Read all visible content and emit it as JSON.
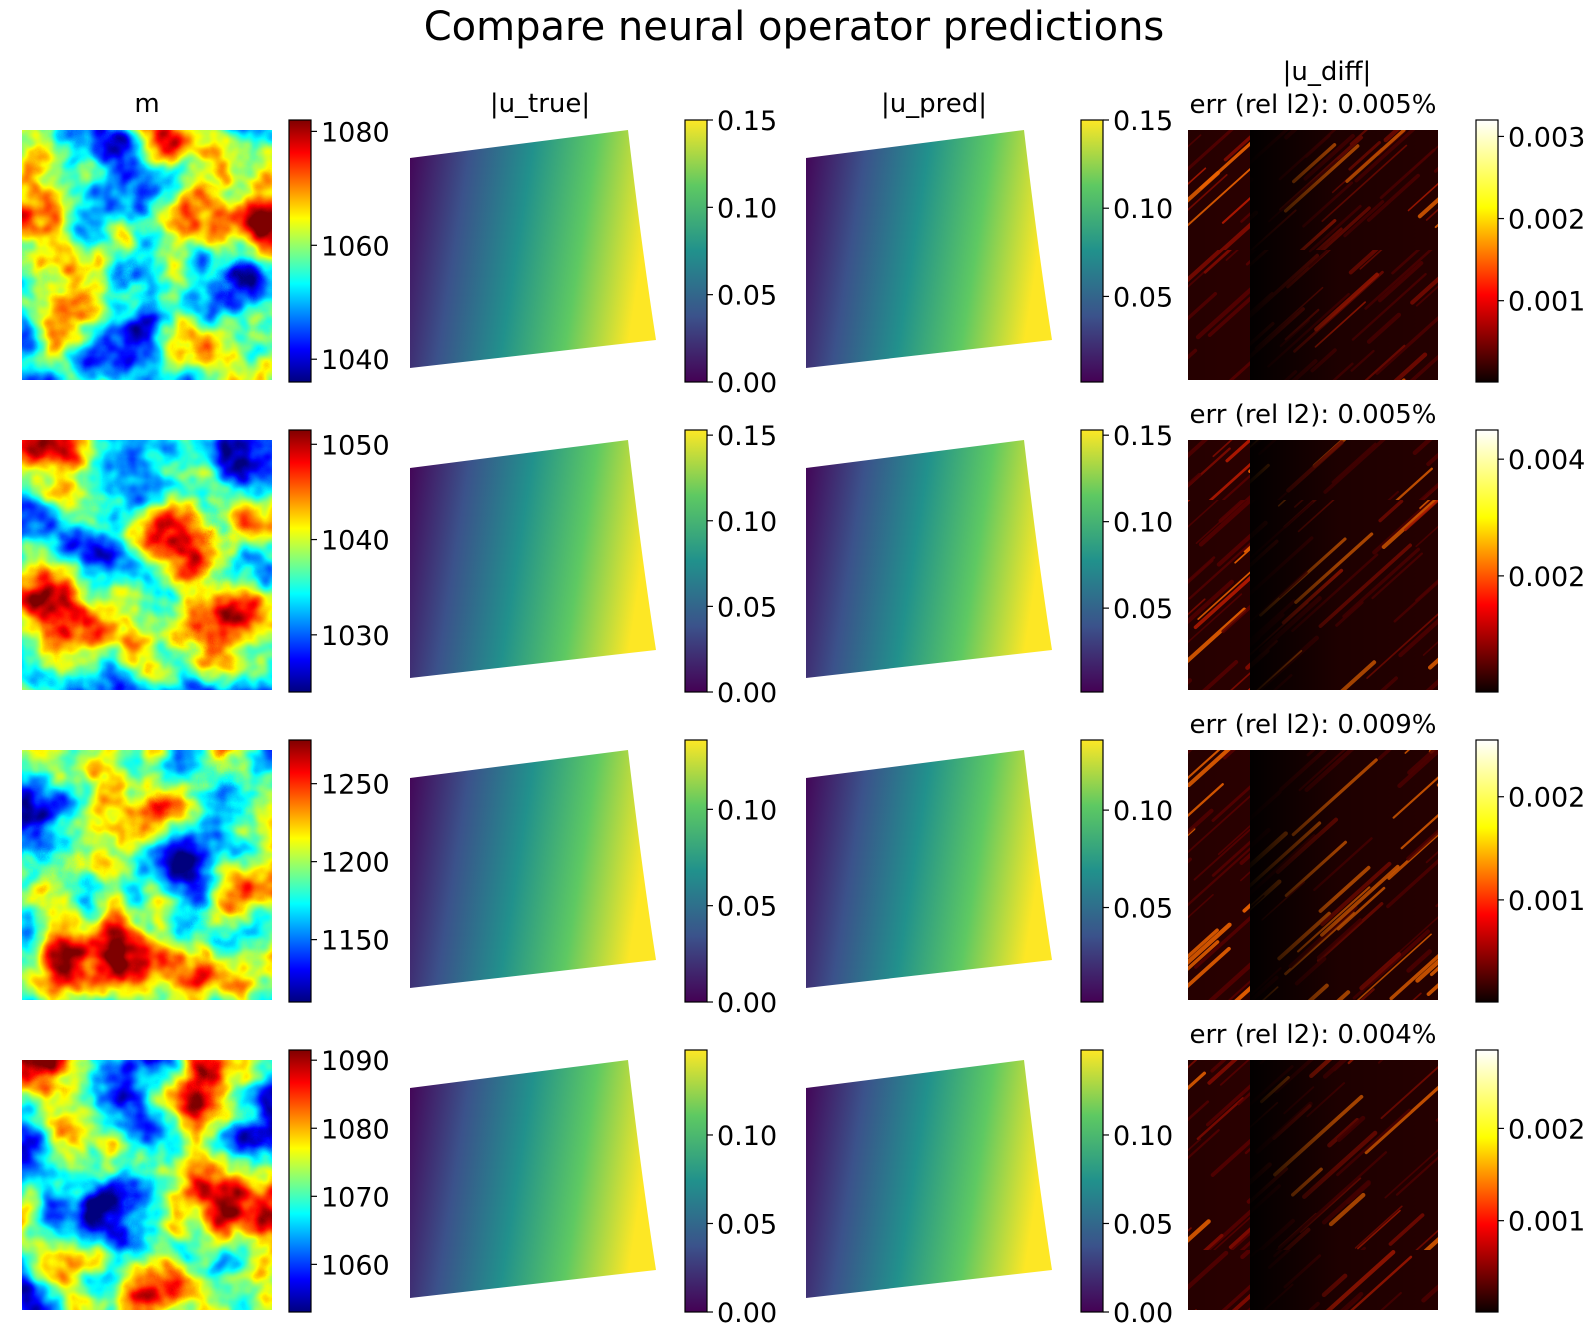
{
  "title": "Compare neural operator predictions",
  "column_headers": {
    "m": "m",
    "u_true": "|u_true|",
    "u_pred": "|u_pred|",
    "u_diff": "|u_diff|"
  },
  "colormaps": {
    "jet": [
      "#00007f",
      "#0000ff",
      "#007fff",
      "#00ffff",
      "#7fff7f",
      "#ffff00",
      "#ff7f00",
      "#ff0000",
      "#7f0000"
    ],
    "viridis": [
      "#440154",
      "#3b528b",
      "#21918c",
      "#5ec962",
      "#fde725"
    ],
    "hot": [
      "#0b0000",
      "#ff0000",
      "#ffff00",
      "#ffffff"
    ]
  },
  "chart_data": [
    {
      "row": 1,
      "m": {
        "type": "heatmap",
        "cmap": "jet",
        "colorbar_range": [
          1036,
          1082
        ],
        "colorbar_ticks": [
          "1040",
          "1060",
          "1080"
        ],
        "colorbar_values": [
          1040,
          1060,
          1080
        ]
      },
      "u_true": {
        "type": "heatmap",
        "cmap": "viridis",
        "colorbar_range": [
          0,
          0.15
        ],
        "colorbar_ticks": [
          "0.00",
          "0.05",
          "0.10",
          "0.15"
        ],
        "colorbar_values": [
          0,
          0.05,
          0.1,
          0.15
        ]
      },
      "u_pred": {
        "type": "heatmap",
        "cmap": "viridis",
        "colorbar_range": [
          0.0015,
          0.15
        ],
        "colorbar_ticks": [
          "0.05",
          "0.10",
          "0.15"
        ],
        "colorbar_values": [
          0.05,
          0.1,
          0.15
        ]
      },
      "u_diff": {
        "type": "heatmap",
        "cmap": "hot",
        "error_label": "err (rel l2): 0.005%",
        "colorbar_range": [
          1e-05,
          0.0032
        ],
        "colorbar_ticks": [
          "0.001",
          "0.002",
          "0.003"
        ],
        "colorbar_values": [
          0.001,
          0.002,
          0.003
        ]
      }
    },
    {
      "row": 2,
      "m": {
        "type": "heatmap",
        "cmap": "jet",
        "colorbar_range": [
          1024,
          1051.5
        ],
        "colorbar_ticks": [
          "1030",
          "1040",
          "1050"
        ],
        "colorbar_values": [
          1030,
          1040,
          1050
        ]
      },
      "u_true": {
        "type": "heatmap",
        "cmap": "viridis",
        "colorbar_range": [
          0,
          0.153
        ],
        "colorbar_ticks": [
          "0.00",
          "0.05",
          "0.10",
          "0.15"
        ],
        "colorbar_values": [
          0,
          0.05,
          0.1,
          0.15
        ]
      },
      "u_pred": {
        "type": "heatmap",
        "cmap": "viridis",
        "colorbar_range": [
          0.0015,
          0.153
        ],
        "colorbar_ticks": [
          "0.05",
          "0.10",
          "0.15"
        ],
        "colorbar_values": [
          0.05,
          0.1,
          0.15
        ]
      },
      "u_diff": {
        "type": "heatmap",
        "cmap": "hot",
        "error_label": "err (rel l2): 0.005%",
        "colorbar_range": [
          1e-05,
          0.0045
        ],
        "colorbar_ticks": [
          "0.002",
          "0.004"
        ],
        "colorbar_values": [
          0.002,
          0.004
        ]
      }
    },
    {
      "row": 3,
      "m": {
        "type": "heatmap",
        "cmap": "jet",
        "colorbar_range": [
          1110,
          1278
        ],
        "colorbar_ticks": [
          "1150",
          "1200",
          "1250"
        ],
        "colorbar_values": [
          1150,
          1200,
          1250
        ]
      },
      "u_true": {
        "type": "heatmap",
        "cmap": "viridis",
        "colorbar_range": [
          0,
          0.136
        ],
        "colorbar_ticks": [
          "0.00",
          "0.05",
          "0.10"
        ],
        "colorbar_values": [
          0,
          0.05,
          0.1
        ]
      },
      "u_pred": {
        "type": "heatmap",
        "cmap": "viridis",
        "colorbar_range": [
          0.0015,
          0.136
        ],
        "colorbar_ticks": [
          "0.05",
          "0.10"
        ],
        "colorbar_values": [
          0.05,
          0.1
        ]
      },
      "u_diff": {
        "type": "heatmap",
        "cmap": "hot",
        "error_label": "err (rel l2): 0.009%",
        "colorbar_range": [
          1e-05,
          0.00255
        ],
        "colorbar_ticks": [
          "0.001",
          "0.002"
        ],
        "colorbar_values": [
          0.001,
          0.002
        ]
      }
    },
    {
      "row": 4,
      "m": {
        "type": "heatmap",
        "cmap": "jet",
        "colorbar_range": [
          1053,
          1091.5
        ],
        "colorbar_ticks": [
          "1060",
          "1070",
          "1080",
          "1090"
        ],
        "colorbar_values": [
          1060,
          1070,
          1080,
          1090
        ]
      },
      "u_true": {
        "type": "heatmap",
        "cmap": "viridis",
        "colorbar_range": [
          0,
          0.148
        ],
        "colorbar_ticks": [
          "0.00",
          "0.05",
          "0.10"
        ],
        "colorbar_values": [
          0,
          0.05,
          0.1
        ]
      },
      "u_pred": {
        "type": "heatmap",
        "cmap": "viridis",
        "colorbar_range": [
          0,
          0.148
        ],
        "colorbar_ticks": [
          "0.00",
          "0.05",
          "0.10"
        ],
        "colorbar_values": [
          0,
          0.05,
          0.1
        ]
      },
      "u_diff": {
        "type": "heatmap",
        "cmap": "hot",
        "error_label": "err (rel l2): 0.004%",
        "colorbar_range": [
          1e-05,
          0.00285
        ],
        "colorbar_ticks": [
          "0.001",
          "0.002"
        ],
        "colorbar_values": [
          0.001,
          0.002
        ]
      }
    }
  ]
}
